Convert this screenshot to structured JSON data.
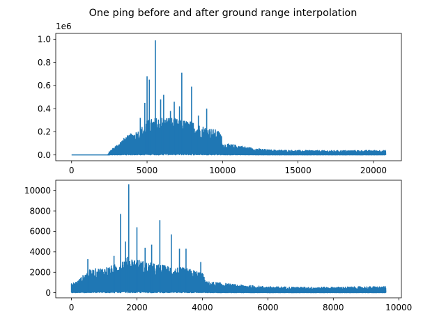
{
  "figure": {
    "title": "One ping before and after ground range interpolation"
  },
  "colors": {
    "series": "#1f77b4",
    "axes": "#000000",
    "background": "#ffffff"
  },
  "chart_data": [
    {
      "type": "line",
      "title": "",
      "xlabel": "",
      "ylabel": "",
      "xlim": [
        -1050,
        21850
      ],
      "ylim": [
        -50000,
        1050000
      ],
      "x_ticks": [
        0,
        5000,
        10000,
        15000,
        20000
      ],
      "x_tick_labels": [
        "0",
        "5000",
        "10000",
        "15000",
        "20000"
      ],
      "y_ticks": [
        0,
        200000,
        400000,
        600000,
        800000,
        1000000
      ],
      "y_tick_labels": [
        "0.0",
        "0.2",
        "0.4",
        "0.6",
        "0.8",
        "1.0"
      ],
      "offset_text": "1e6",
      "grid": false,
      "n_samples": 20800,
      "envelope": [
        {
          "x": 0,
          "y": 0
        },
        {
          "x": 2400,
          "y": 0
        },
        {
          "x": 2500,
          "y": 30000
        },
        {
          "x": 3000,
          "y": 90000
        },
        {
          "x": 3500,
          "y": 150000
        },
        {
          "x": 4000,
          "y": 190000
        },
        {
          "x": 4500,
          "y": 220000
        },
        {
          "x": 5000,
          "y": 300000
        },
        {
          "x": 5500,
          "y": 320000
        },
        {
          "x": 6000,
          "y": 330000
        },
        {
          "x": 6500,
          "y": 330000
        },
        {
          "x": 7000,
          "y": 310000
        },
        {
          "x": 7500,
          "y": 300000
        },
        {
          "x": 8000,
          "y": 290000
        },
        {
          "x": 8500,
          "y": 260000
        },
        {
          "x": 9000,
          "y": 240000
        },
        {
          "x": 9500,
          "y": 220000
        },
        {
          "x": 9900,
          "y": 200000
        },
        {
          "x": 10000,
          "y": 100000
        },
        {
          "x": 11000,
          "y": 85000
        },
        {
          "x": 12000,
          "y": 60000
        },
        {
          "x": 13000,
          "y": 45000
        },
        {
          "x": 15000,
          "y": 40000
        },
        {
          "x": 17000,
          "y": 38000
        },
        {
          "x": 20000,
          "y": 40000
        },
        {
          "x": 20800,
          "y": 40000
        }
      ],
      "peaks": [
        {
          "x": 5550,
          "y": 990000
        },
        {
          "x": 5000,
          "y": 680000
        },
        {
          "x": 5150,
          "y": 650000
        },
        {
          "x": 7300,
          "y": 710000
        },
        {
          "x": 7950,
          "y": 590000
        },
        {
          "x": 6100,
          "y": 520000
        },
        {
          "x": 5900,
          "y": 480000
        },
        {
          "x": 4850,
          "y": 450000
        },
        {
          "x": 6800,
          "y": 460000
        },
        {
          "x": 7150,
          "y": 420000
        },
        {
          "x": 8950,
          "y": 400000
        },
        {
          "x": 6550,
          "y": 380000
        },
        {
          "x": 8400,
          "y": 340000
        },
        {
          "x": 4550,
          "y": 320000
        }
      ]
    },
    {
      "type": "line",
      "title": "",
      "xlabel": "",
      "ylabel": "",
      "xlim": [
        -480,
        10080
      ],
      "ylim": [
        -500,
        11000
      ],
      "x_ticks": [
        0,
        2000,
        4000,
        6000,
        8000,
        10000
      ],
      "x_tick_labels": [
        "0",
        "2000",
        "4000",
        "6000",
        "8000",
        "10000"
      ],
      "y_ticks": [
        0,
        2000,
        4000,
        6000,
        8000,
        10000
      ],
      "y_tick_labels": [
        "0",
        "2000",
        "4000",
        "6000",
        "8000",
        "10000"
      ],
      "grid": false,
      "n_samples": 9600,
      "envelope": [
        {
          "x": 0,
          "y": 900
        },
        {
          "x": 200,
          "y": 1200
        },
        {
          "x": 500,
          "y": 2200
        },
        {
          "x": 800,
          "y": 2400
        },
        {
          "x": 1000,
          "y": 2500
        },
        {
          "x": 1300,
          "y": 2700
        },
        {
          "x": 1500,
          "y": 3200
        },
        {
          "x": 1700,
          "y": 3500
        },
        {
          "x": 2000,
          "y": 3300
        },
        {
          "x": 2300,
          "y": 3000
        },
        {
          "x": 2600,
          "y": 2800
        },
        {
          "x": 3000,
          "y": 2600
        },
        {
          "x": 3500,
          "y": 2400
        },
        {
          "x": 4000,
          "y": 2000
        },
        {
          "x": 4100,
          "y": 1100
        },
        {
          "x": 4500,
          "y": 1000
        },
        {
          "x": 5000,
          "y": 800
        },
        {
          "x": 5500,
          "y": 700
        },
        {
          "x": 6000,
          "y": 600
        },
        {
          "x": 7000,
          "y": 550
        },
        {
          "x": 8000,
          "y": 550
        },
        {
          "x": 9000,
          "y": 600
        },
        {
          "x": 9600,
          "y": 600
        }
      ],
      "peaks": [
        {
          "x": 1750,
          "y": 10600
        },
        {
          "x": 1500,
          "y": 7700
        },
        {
          "x": 2700,
          "y": 7100
        },
        {
          "x": 2000,
          "y": 6400
        },
        {
          "x": 3050,
          "y": 5700
        },
        {
          "x": 1650,
          "y": 5000
        },
        {
          "x": 2450,
          "y": 4700
        },
        {
          "x": 3300,
          "y": 4300
        },
        {
          "x": 3500,
          "y": 4300
        },
        {
          "x": 2250,
          "y": 4400
        },
        {
          "x": 1300,
          "y": 3600
        },
        {
          "x": 500,
          "y": 3300
        },
        {
          "x": 3950,
          "y": 3000
        }
      ]
    }
  ]
}
